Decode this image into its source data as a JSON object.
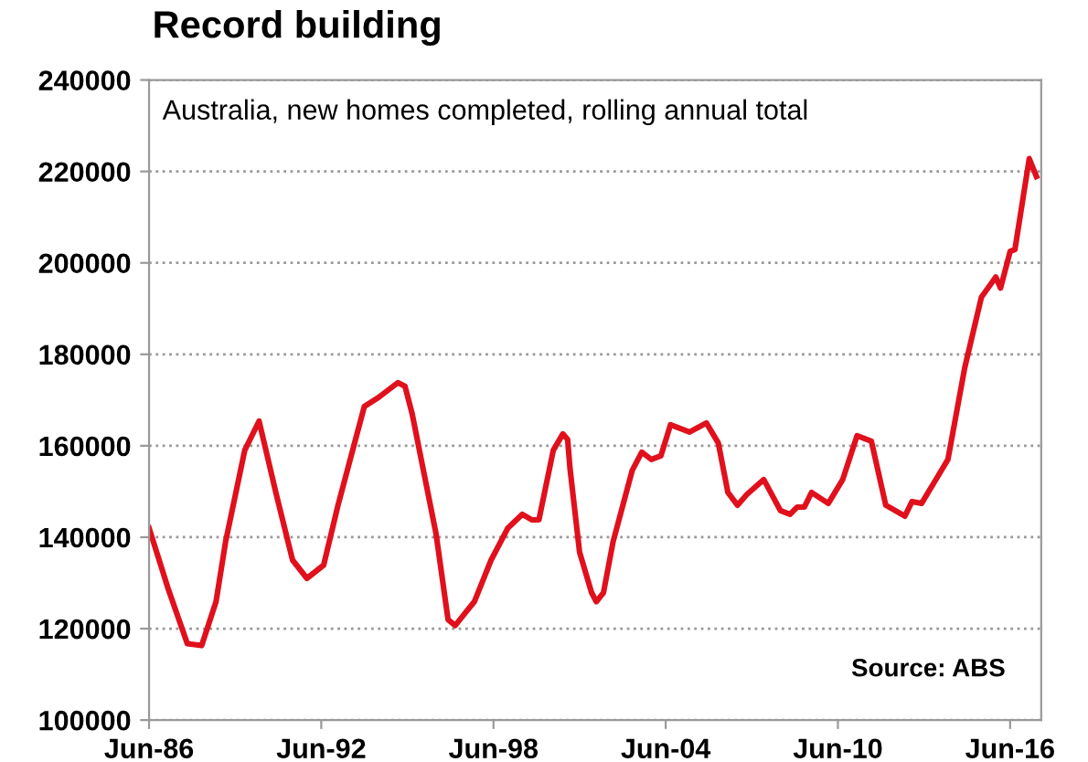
{
  "chart_data": {
    "type": "line",
    "title": "Record building",
    "subtitle": "Australia, new homes completed, rolling annual total",
    "annotations": [
      "Source: ABS"
    ],
    "x": [
      "1986-06",
      "1987-02",
      "1987-10",
      "1988-04",
      "1988-10",
      "1989-02",
      "1989-10",
      "1990-04",
      "1990-11",
      "1991-06",
      "1991-12",
      "1992-07",
      "1993-01",
      "1993-12",
      "1994-06",
      "1995-02",
      "1995-05",
      "1995-08",
      "1996-06",
      "1996-11",
      "1997-02",
      "1997-10",
      "1998-05",
      "1998-12",
      "1999-06",
      "1999-10",
      "2000-01",
      "2000-07",
      "2000-11",
      "2001-01",
      "2001-02",
      "2001-06",
      "2001-11",
      "2002-01",
      "2002-04",
      "2002-08",
      "2003-04",
      "2003-08",
      "2003-12",
      "2004-04",
      "2004-08",
      "2005-04",
      "2005-11",
      "2006-04",
      "2006-08",
      "2006-12",
      "2007-04",
      "2007-11",
      "2008-06",
      "2008-10",
      "2009-01",
      "2009-04",
      "2009-07",
      "2010-02",
      "2010-08",
      "2011-02",
      "2011-08",
      "2012-02",
      "2012-10",
      "2013-01",
      "2013-05",
      "2014-04",
      "2014-11",
      "2015-06",
      "2015-12",
      "2016-02",
      "2016-06",
      "2016-08",
      "2017-02",
      "2017-05"
    ],
    "series": [
      {
        "color": "#e0101c",
        "values": [
          142000,
          128700,
          116700,
          116300,
          125900,
          139000,
          159000,
          165400,
          149800,
          135000,
          131000,
          133900,
          147000,
          168600,
          170600,
          173800,
          173000,
          167000,
          140700,
          122000,
          120700,
          125900,
          135000,
          142000,
          145000,
          143800,
          143800,
          159000,
          162600,
          161400,
          155000,
          136700,
          127900,
          125900,
          127900,
          139000,
          154600,
          158600,
          157000,
          157800,
          164600,
          163000,
          165000,
          160600,
          149800,
          147000,
          149400,
          152600,
          145800,
          145000,
          146600,
          146600,
          149800,
          147400,
          152600,
          162200,
          161000,
          147000,
          144600,
          147800,
          147400,
          157000,
          177000,
          192500,
          196900,
          194500,
          202500,
          202900,
          222800,
          218900
        ]
      }
    ],
    "xlim": [
      "1986-06",
      "2017-07"
    ],
    "xticks": [
      {
        "value": "1986-06",
        "label": "Jun-86"
      },
      {
        "value": "1992-06",
        "label": "Jun-92"
      },
      {
        "value": "1998-06",
        "label": "Jun-98"
      },
      {
        "value": "2004-06",
        "label": "Jun-04"
      },
      {
        "value": "2010-06",
        "label": "Jun-10"
      },
      {
        "value": "2016-06",
        "label": "Jun-16"
      }
    ],
    "ylim": [
      100000,
      240000
    ],
    "yticks": [
      100000,
      120000,
      140000,
      160000,
      180000,
      200000,
      220000,
      240000
    ],
    "grid": "y",
    "line_style": "solid"
  }
}
